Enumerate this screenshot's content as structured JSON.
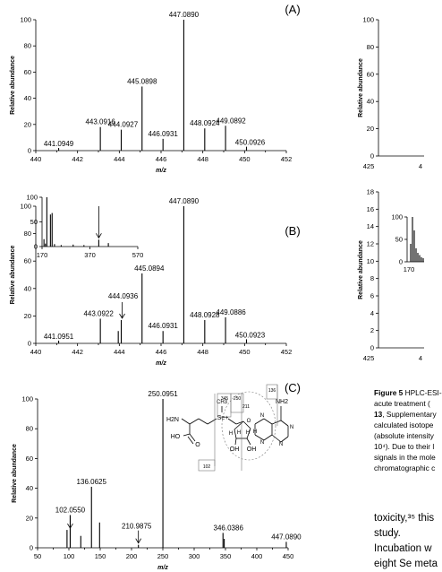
{
  "panels": [
    {
      "label": "(A)",
      "ylabel": "Relative abundance",
      "xlabel": "m/z",
      "chart_data": {
        "type": "bar",
        "xlim": [
          440,
          452
        ],
        "ylim": [
          0,
          100
        ],
        "xticks": [
          440,
          442,
          444,
          446,
          448,
          450,
          452
        ],
        "yticks": [
          0,
          20,
          40,
          60,
          80,
          100
        ],
        "peaks": [
          {
            "x": 441.0949,
            "y": 2,
            "label": "441.0949"
          },
          {
            "x": 443.0916,
            "y": 18,
            "label": "443.0916"
          },
          {
            "x": 444.0927,
            "y": 16,
            "label": "444.0927"
          },
          {
            "x": 445.0898,
            "y": 49,
            "label": "445.0898"
          },
          {
            "x": 446.0931,
            "y": 9,
            "label": "446.0931"
          },
          {
            "x": 447.089,
            "y": 100,
            "label": "447.0890"
          },
          {
            "x": 448.0924,
            "y": 17,
            "label": "448.0924"
          },
          {
            "x": 449.0892,
            "y": 19,
            "label": "449.0892"
          },
          {
            "x": 450.0926,
            "y": 3,
            "label": "450.0926"
          }
        ]
      }
    },
    {
      "label": "(B)",
      "ylabel": "Relative abundance",
      "xlabel": "m/z",
      "chart_data": {
        "type": "bar",
        "xlim": [
          440,
          452
        ],
        "ylim": [
          0,
          100
        ],
        "xticks": [
          440,
          442,
          444,
          446,
          448,
          450,
          452
        ],
        "yticks": [
          0,
          20,
          40,
          60,
          80,
          100
        ],
        "peaks": [
          {
            "x": 441.0951,
            "y": 2,
            "label": "441.0951"
          },
          {
            "x": 443.0922,
            "y": 18,
            "label": "443.0922"
          },
          {
            "x": 443.95,
            "y": 9,
            "label": ""
          },
          {
            "x": 444.0936,
            "y": 17,
            "label": "444.0936"
          },
          {
            "x": 445.0894,
            "y": 51,
            "label": "445.0894"
          },
          {
            "x": 446.0931,
            "y": 9,
            "label": "446.0931"
          },
          {
            "x": 447.089,
            "y": 100,
            "label": "447.0890"
          },
          {
            "x": 448.0928,
            "y": 17,
            "label": "448.0928"
          },
          {
            "x": 449.0886,
            "y": 19,
            "label": "449.0886"
          },
          {
            "x": 450.0923,
            "y": 3,
            "label": "450.0923"
          }
        ],
        "arrow_at": 444.0936
      },
      "inset": {
        "chart_data": {
          "type": "bar",
          "xlim": [
            170,
            570
          ],
          "ylim": [
            0,
            100
          ],
          "xticks": [
            170,
            370,
            570
          ],
          "yticks": [
            0,
            50,
            100
          ],
          "peaks": [
            {
              "x": 178,
              "y": 15
            },
            {
              "x": 184,
              "y": 6
            },
            {
              "x": 190,
              "y": 100
            },
            {
              "x": 205,
              "y": 65
            },
            {
              "x": 212,
              "y": 68
            },
            {
              "x": 222,
              "y": 5
            },
            {
              "x": 250,
              "y": 3
            },
            {
              "x": 300,
              "y": 4
            },
            {
              "x": 345,
              "y": 3
            },
            {
              "x": 407,
              "y": 14
            },
            {
              "x": 447,
              "y": 7
            }
          ],
          "arrow_at": 407
        }
      }
    },
    {
      "label": "(C)",
      "ylabel": "Relative abundance",
      "xlabel": "m/z",
      "chart_data": {
        "type": "bar",
        "xlim": [
          50,
          450
        ],
        "ylim": [
          0,
          100
        ],
        "xticks": [
          50,
          100,
          150,
          200,
          250,
          300,
          350,
          400,
          450
        ],
        "yticks": [
          0,
          20,
          40,
          60,
          80,
          100
        ],
        "peaks": [
          {
            "x": 97,
            "y": 12,
            "label": ""
          },
          {
            "x": 102.055,
            "y": 22,
            "label": "102.0550"
          },
          {
            "x": 119,
            "y": 8,
            "label": ""
          },
          {
            "x": 136.0625,
            "y": 41,
            "label": "136.0625"
          },
          {
            "x": 149,
            "y": 17,
            "label": ""
          },
          {
            "x": 210.9875,
            "y": 2,
            "label": "210.9875"
          },
          {
            "x": 250.0951,
            "y": 100,
            "label": "250.0951"
          },
          {
            "x": 346.0386,
            "y": 10,
            "label": "346.0386"
          },
          {
            "x": 348,
            "y": 6,
            "label": ""
          },
          {
            "x": 447.089,
            "y": 4,
            "label": "447.0890"
          }
        ],
        "arrows_at": [
          102.055,
          210.9875
        ]
      },
      "structure": {
        "atoms": [
          "NH2",
          "H2N",
          "HO",
          "O",
          "Se+",
          "CH3",
          "OH",
          "OH",
          "O",
          "N",
          "N",
          "N",
          "N",
          "H",
          "H",
          "H",
          "H"
        ],
        "fragments": [
          "102",
          "345",
          "250",
          "136",
          "211"
        ]
      }
    }
  ],
  "right_panels": [
    {
      "yticks": [
        "0",
        "20",
        "40",
        "60",
        "80",
        "100"
      ],
      "xticks": [
        "425",
        "4"
      ]
    },
    {
      "yticks": [
        "0",
        "2",
        "4",
        "6",
        "8",
        "10",
        "12",
        "14",
        "16",
        "18"
      ],
      "xticks": [
        "425",
        "4"
      ],
      "inset_yticks": [
        "0",
        "50",
        "100"
      ],
      "inset_xticks": [
        "170"
      ]
    }
  ],
  "caption_lines": [
    {
      "bold": "Figure 5",
      "text": " HPLC-ESI-"
    },
    {
      "bold": "",
      "text": "acute treatment ("
    },
    {
      "bold": "13",
      "text": ", Supplementary"
    },
    {
      "bold": "",
      "text": "calculated isotope"
    },
    {
      "bold": "",
      "text": "(absolute intensity"
    },
    {
      "bold": "",
      "text": "10⁴). Due to their l"
    },
    {
      "bold": "",
      "text": "signals in the mole"
    },
    {
      "bold": "",
      "text": "chromatographic c"
    }
  ],
  "body_lines": [
    "toxicity,³⁵ this",
    "study.",
    "Incubation w",
    "eight Se meta"
  ]
}
